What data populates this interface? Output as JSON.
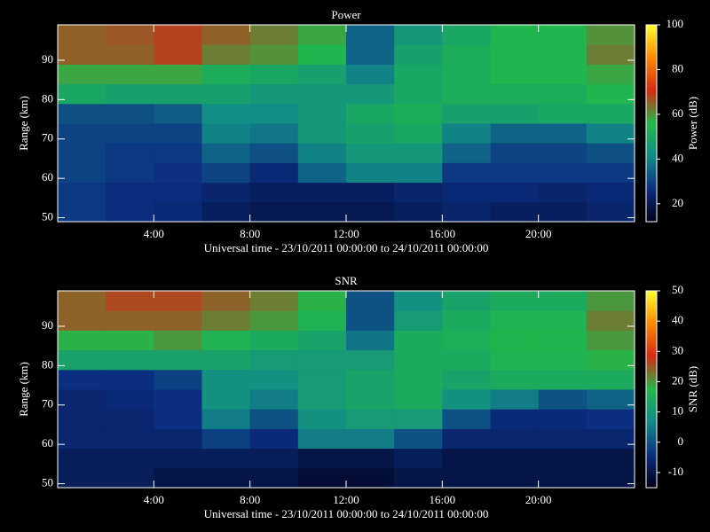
{
  "chart_data": [
    {
      "type": "heatmap",
      "title": "Power",
      "xlabel": "Universal time - 23/10/2011 00:00:00 to 24/10/2011 00:00:00",
      "ylabel": "Range (km)",
      "colorbar_label": "Power (dB)",
      "xbins": [
        0,
        2,
        4,
        6,
        8,
        10,
        12,
        14,
        16,
        18,
        20,
        22,
        24
      ],
      "ybins": [
        49,
        54,
        59,
        64,
        69,
        74,
        79,
        84,
        89,
        94,
        99
      ],
      "values": [
        [
          28,
          26,
          25,
          22,
          20,
          20,
          20,
          22,
          24,
          22,
          22,
          24
        ],
        [
          28,
          26,
          26,
          24,
          22,
          22,
          22,
          24,
          25,
          25,
          24,
          25
        ],
        [
          30,
          28,
          27,
          30,
          25,
          35,
          40,
          40,
          28,
          28,
          28,
          28
        ],
        [
          30,
          28,
          28,
          35,
          32,
          40,
          45,
          45,
          35,
          30,
          30,
          32
        ],
        [
          30,
          30,
          30,
          40,
          38,
          45,
          48,
          50,
          40,
          35,
          35,
          40
        ],
        [
          32,
          32,
          34,
          42,
          42,
          45,
          50,
          52,
          48,
          48,
          50,
          50
        ],
        [
          50,
          48,
          48,
          48,
          45,
          45,
          45,
          50,
          52,
          52,
          52,
          55
        ],
        [
          58,
          58,
          58,
          52,
          50,
          48,
          40,
          50,
          52,
          55,
          55,
          58
        ],
        [
          65,
          65,
          68,
          62,
          60,
          55,
          35,
          48,
          52,
          55,
          55,
          62
        ],
        [
          65,
          66,
          68,
          65,
          62,
          58,
          35,
          45,
          50,
          55,
          55,
          60
        ]
      ],
      "xlim": [
        0,
        24
      ],
      "ylim": [
        49,
        99
      ],
      "xticks": [
        {
          "value": 4,
          "label": "4:00"
        },
        {
          "value": 8,
          "label": "8:00"
        },
        {
          "value": 12,
          "label": "12:00"
        },
        {
          "value": 16,
          "label": "16:00"
        },
        {
          "value": 20,
          "label": "20:00"
        }
      ],
      "yticks": [
        50,
        60,
        70,
        80,
        90
      ],
      "zlim": [
        12,
        100
      ],
      "zticks": [
        20,
        40,
        60,
        80,
        100
      ],
      "colormap": [
        "#000018",
        "#0b2e80",
        "#128c88",
        "#22b84a",
        "#d42a14",
        "#ff8800",
        "#ffff30"
      ]
    },
    {
      "type": "heatmap",
      "title": "SNR",
      "xlabel": "Universal time - 23/10/2011 00:00:00 to 24/10/2011 00:00:00",
      "ylabel": "Range (km)",
      "colorbar_label": "SNR (dB)",
      "xbins": [
        0,
        2,
        4,
        6,
        8,
        10,
        12,
        14,
        16,
        18,
        20,
        22,
        24
      ],
      "ybins": [
        49,
        54,
        59,
        64,
        69,
        74,
        79,
        84,
        89,
        94,
        99
      ],
      "values": [
        [
          -8,
          -8,
          -10,
          -10,
          -10,
          -12,
          -12,
          -10,
          -10,
          -10,
          -10,
          -10
        ],
        [
          -8,
          -8,
          -8,
          -8,
          -8,
          -10,
          -10,
          -8,
          -10,
          -10,
          -10,
          -10
        ],
        [
          -6,
          -6,
          -6,
          -2,
          -5,
          5,
          5,
          0,
          -6,
          -6,
          -6,
          -6
        ],
        [
          -6,
          -6,
          -4,
          5,
          0,
          8,
          10,
          10,
          0,
          -5,
          -5,
          -4
        ],
        [
          -6,
          -5,
          -4,
          8,
          5,
          10,
          12,
          14,
          8,
          5,
          0,
          2
        ],
        [
          -4,
          -4,
          -2,
          8,
          8,
          10,
          12,
          14,
          12,
          14,
          14,
          14
        ],
        [
          12,
          12,
          12,
          12,
          10,
          10,
          10,
          14,
          14,
          16,
          16,
          18
        ],
        [
          18,
          18,
          20,
          16,
          14,
          12,
          4,
          14,
          15,
          17,
          17,
          20
        ],
        [
          24,
          24,
          24,
          22,
          20,
          16,
          0,
          10,
          14,
          16,
          16,
          22
        ],
        [
          24,
          26,
          26,
          24,
          22,
          18,
          0,
          8,
          12,
          14,
          14,
          20
        ]
      ],
      "xlim": [
        0,
        24
      ],
      "ylim": [
        49,
        99
      ],
      "xticks": [
        {
          "value": 4,
          "label": "4:00"
        },
        {
          "value": 8,
          "label": "8:00"
        },
        {
          "value": 12,
          "label": "12:00"
        },
        {
          "value": 16,
          "label": "16:00"
        },
        {
          "value": 20,
          "label": "20:00"
        }
      ],
      "yticks": [
        50,
        60,
        70,
        80,
        90
      ],
      "zlim": [
        -15,
        50
      ],
      "zticks": [
        -10,
        0,
        10,
        20,
        30,
        40,
        50
      ],
      "colormap": [
        "#000018",
        "#0b2e80",
        "#128c88",
        "#22b84a",
        "#d42a14",
        "#ff8800",
        "#ffff30"
      ]
    }
  ]
}
